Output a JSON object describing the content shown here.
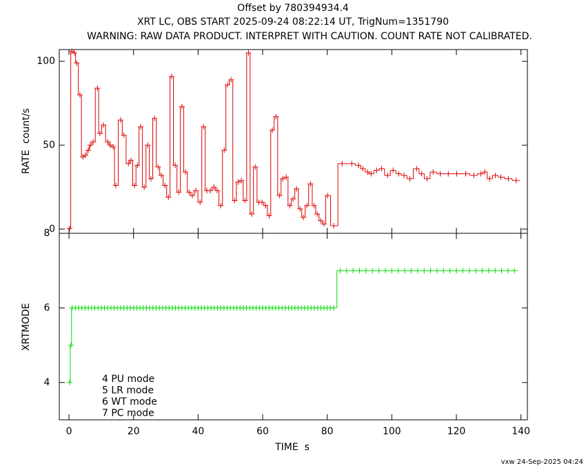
{
  "footer": "vxw 24-Sep-2025 04:24",
  "chart_data": [
    {
      "type": "line",
      "title": "Offset by 780394934.4",
      "subtitle": "XRT LC, OBS START 2025-09-24 08:22:14 UT, TrigNum=1351790",
      "annotation": "WARNING: RAW DATA PRODUCT. INTERPRET WITH CAUTION. COUNT RATE NOT CALIBRATED.",
      "ylabel": "RATE  count/s",
      "xlim": [
        -3,
        142
      ],
      "ylim": [
        -2.5,
        107
      ],
      "yticks": [
        0,
        50,
        100
      ],
      "series": [
        {
          "color": "#dd0000",
          "x": [
            0.2,
            0.9,
            1.7,
            2.4,
            3.4,
            4.3,
            5.1,
            6,
            6.6,
            7.5,
            8.8,
            9.6,
            10.7,
            12,
            12.8,
            13.7,
            14.5,
            16,
            17,
            18.4,
            19.2,
            20.3,
            21.2,
            22.2,
            23.3,
            24.4,
            25.4,
            26.5,
            27.6,
            28.6,
            29.7,
            30.8,
            31.8,
            32.9,
            34,
            35,
            36.1,
            37.2,
            38.2,
            39.3,
            40.6,
            41.7,
            42.7,
            43.8,
            44.9,
            45.9,
            47,
            48.1,
            49.1,
            50.2,
            51.3,
            52.4,
            53.4,
            54.5,
            55.6,
            56.6,
            57.7,
            58.8,
            59.8,
            60.9,
            62,
            63,
            64.1,
            65.2,
            66.2,
            67.3,
            68.4,
            69.4,
            70.5,
            71.6,
            72.6,
            73.7,
            74.8,
            75.9,
            76.9,
            78,
            79,
            80.1,
            82,
            84.6,
            87.6,
            89.7,
            91,
            92.5,
            93.6,
            95.3,
            96.8,
            98.7,
            100.4,
            102.1,
            103.8,
            105.6,
            107.7,
            109.2,
            110.9,
            112.8,
            115,
            117.5,
            120.1,
            122.9,
            125.4,
            127.6,
            128.8,
            130.3,
            132.1,
            133.8,
            136.1,
            138.5
          ],
          "values": [
            0.4,
            106,
            105,
            99,
            80,
            43,
            44,
            47,
            50,
            52,
            84,
            57,
            62,
            52,
            50,
            49,
            26,
            65,
            56,
            39,
            41,
            26,
            38,
            61,
            25,
            50,
            30,
            66,
            37,
            32,
            26,
            19,
            91,
            38,
            22,
            73,
            34,
            22,
            20,
            23,
            16,
            61,
            23,
            23,
            25,
            23,
            14,
            47,
            86,
            89,
            17,
            28,
            29,
            17,
            105,
            9,
            37,
            16,
            16,
            14,
            8,
            59,
            67,
            20,
            30,
            31,
            14,
            18,
            24,
            12,
            7,
            14,
            27,
            14,
            9,
            5,
            3,
            20,
            2,
            39,
            39,
            38,
            36,
            34,
            33,
            35,
            36,
            32,
            35,
            33,
            32,
            30,
            36,
            33,
            30,
            34,
            33,
            33,
            33,
            33,
            32,
            33,
            34,
            30,
            32,
            31,
            30,
            29
          ]
        }
      ]
    },
    {
      "type": "line",
      "xlabel": "TIME  s",
      "ylabel": "XRTMODE",
      "annotations": [
        "4 PU mode",
        "5 LR mode",
        "6 WT mode",
        "7 PC mode"
      ],
      "xlim": [
        -3,
        142
      ],
      "ylim": [
        3,
        8
      ],
      "xticks": [
        0,
        20,
        40,
        60,
        80,
        100,
        120,
        140
      ],
      "yticks": [
        4,
        6,
        8
      ],
      "series": [
        {
          "color": "#00dd00",
          "x": [
            0.2,
            0.6,
            1,
            2,
            3,
            4,
            5,
            6,
            7,
            8,
            9,
            10,
            11,
            12,
            13,
            14,
            15,
            16,
            17,
            18,
            19,
            20,
            21,
            22,
            23,
            24,
            25,
            26,
            27,
            28,
            29,
            30,
            31,
            32,
            33,
            34,
            35,
            36,
            37,
            38,
            39,
            40,
            41,
            42,
            43,
            44,
            45,
            46,
            47,
            48,
            49,
            50,
            51,
            52,
            53,
            54,
            55,
            56,
            57,
            58,
            59,
            60,
            61,
            62,
            63,
            64,
            65,
            66,
            67,
            68,
            69,
            70,
            71,
            72,
            73,
            74,
            75,
            76,
            77,
            78,
            79,
            80,
            81,
            82,
            84,
            86,
            88,
            90,
            92,
            94,
            96,
            98,
            100,
            102,
            104,
            106,
            108,
            110,
            112,
            114,
            116,
            118,
            120,
            122,
            124,
            126,
            128,
            130,
            132,
            134,
            136,
            138
          ],
          "values": [
            4,
            5,
            6,
            6,
            6,
            6,
            6,
            6,
            6,
            6,
            6,
            6,
            6,
            6,
            6,
            6,
            6,
            6,
            6,
            6,
            6,
            6,
            6,
            6,
            6,
            6,
            6,
            6,
            6,
            6,
            6,
            6,
            6,
            6,
            6,
            6,
            6,
            6,
            6,
            6,
            6,
            6,
            6,
            6,
            6,
            6,
            6,
            6,
            6,
            6,
            6,
            6,
            6,
            6,
            6,
            6,
            6,
            6,
            6,
            6,
            6,
            6,
            6,
            6,
            6,
            6,
            6,
            6,
            6,
            6,
            6,
            6,
            6,
            6,
            6,
            6,
            6,
            6,
            6,
            6,
            6,
            6,
            6,
            6,
            7,
            7,
            7,
            7,
            7,
            7,
            7,
            7,
            7,
            7,
            7,
            7,
            7,
            7,
            7,
            7,
            7,
            7,
            7,
            7,
            7,
            7,
            7,
            7,
            7,
            7,
            7,
            7
          ]
        }
      ]
    }
  ]
}
